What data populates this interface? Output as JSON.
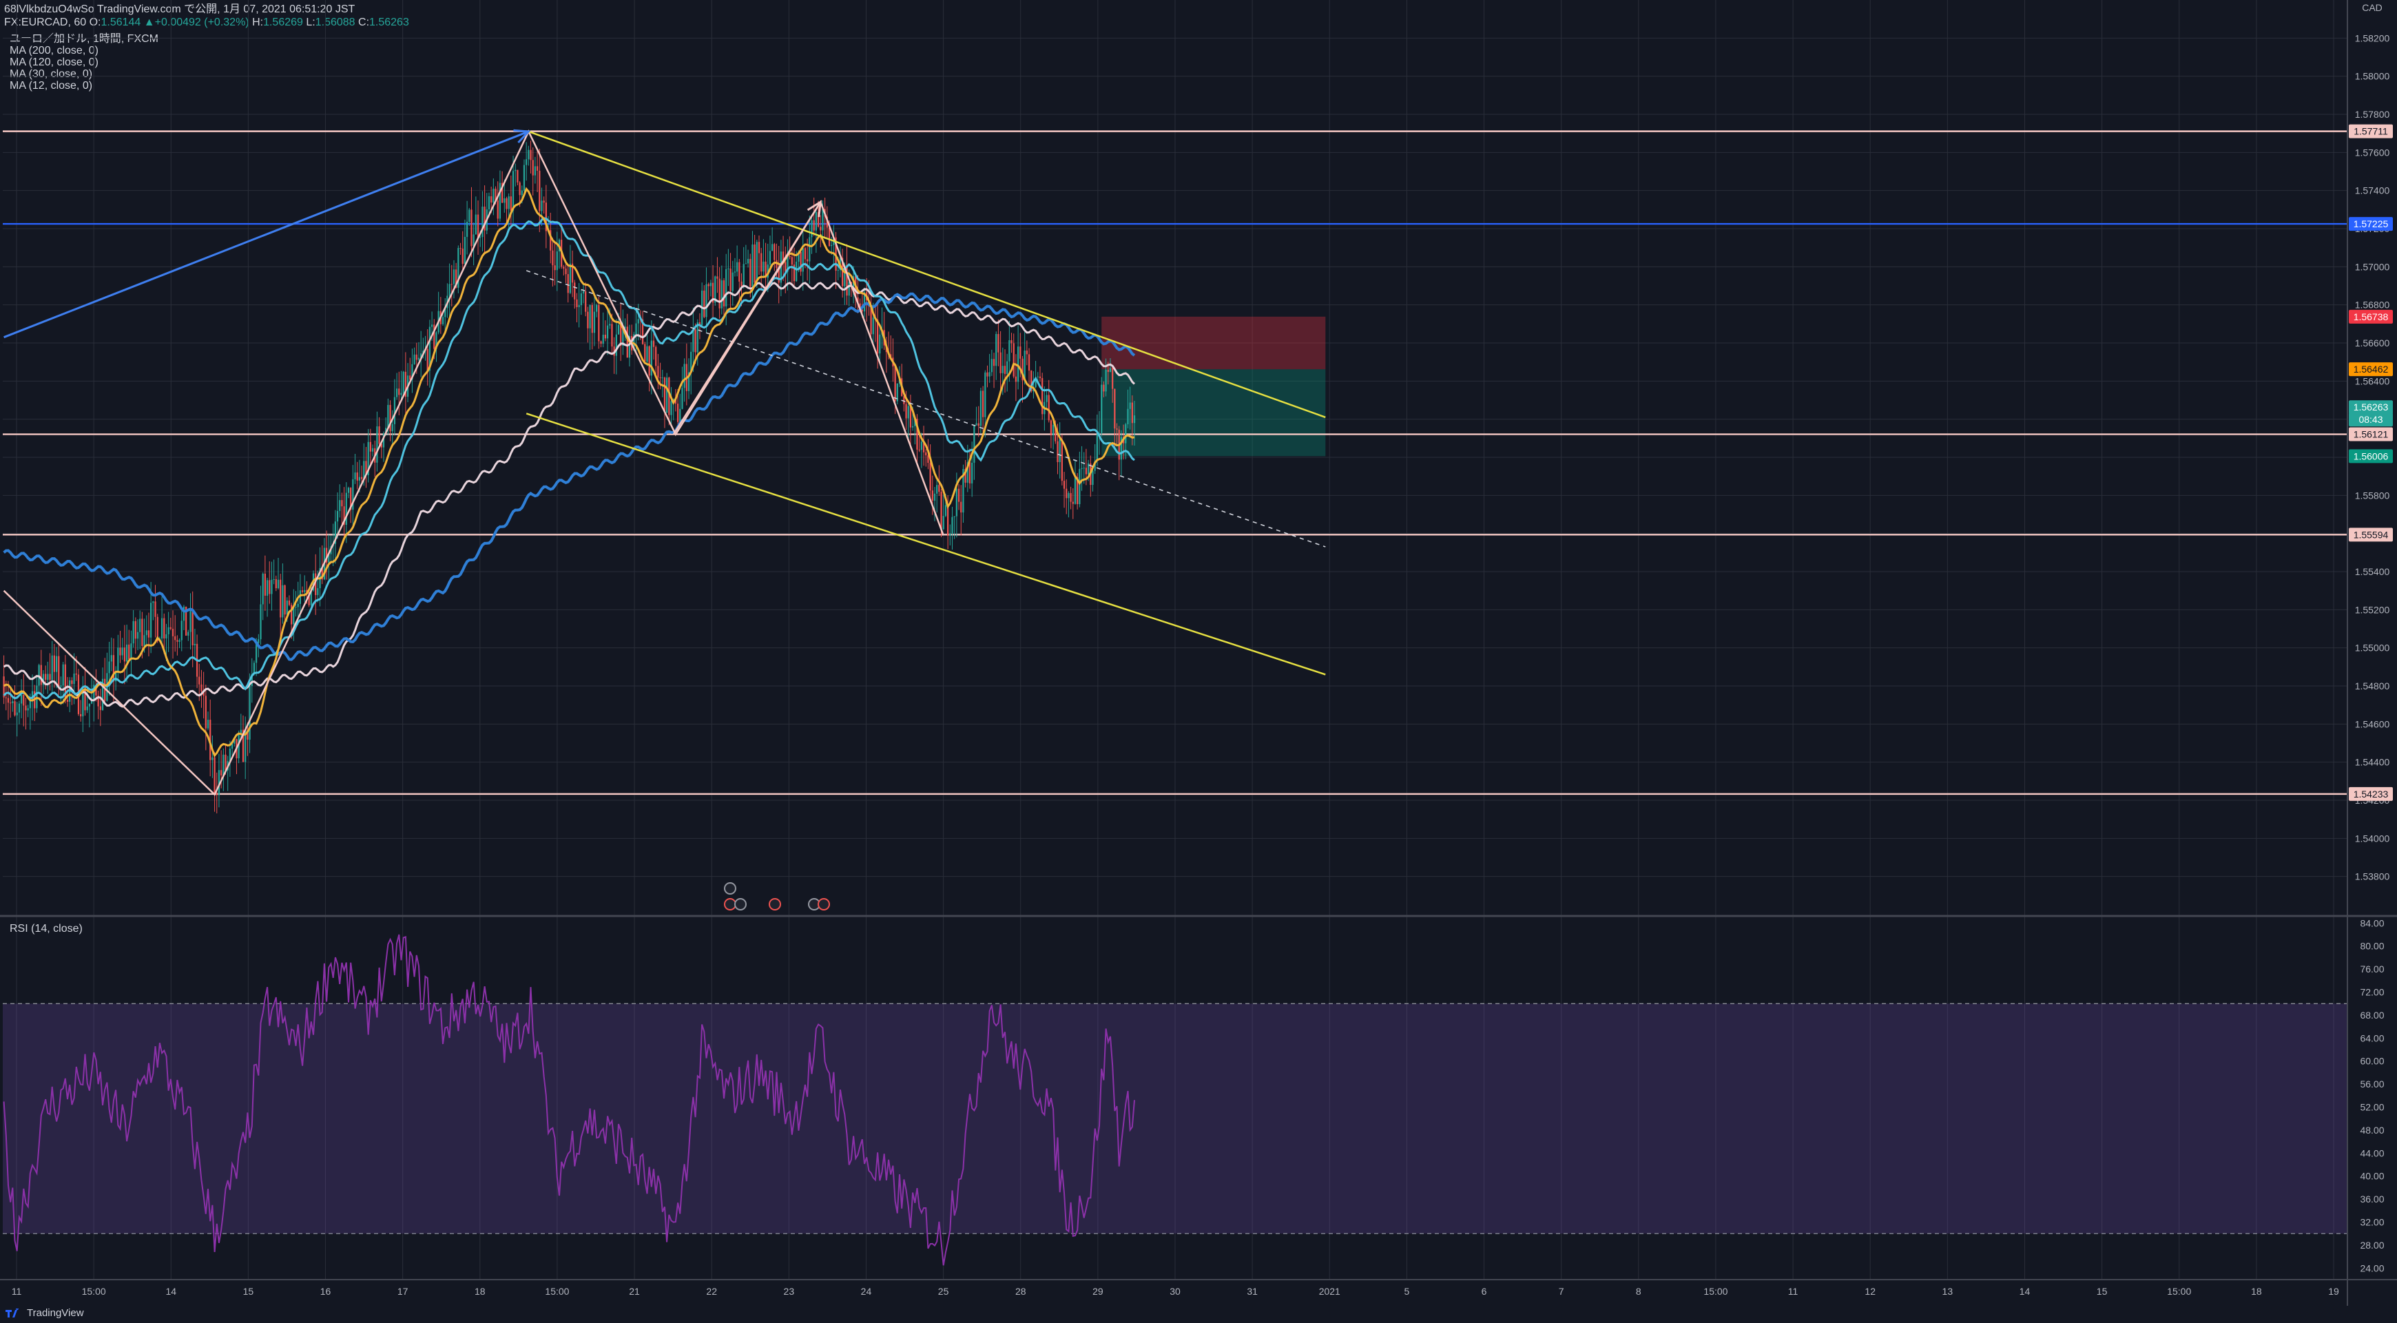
{
  "header": {
    "line1": "68lVlkbdzuO4wSo TradingView.com で公開, 1月 07, 2021 06:51:20 JST",
    "symbol": "FX:EURCAD, 60",
    "open_label": "O:",
    "open": "1.56144",
    "change": "+0.00492 (+0.32%)",
    "high_label": "H:",
    "high": "1.56269",
    "low_label": "L:",
    "low": "1.56088",
    "close_label": "C:",
    "close": "1.56263"
  },
  "legend": {
    "title": "ユーロ／加ドル, 1時間, FXCM",
    "ma200": "MA (200, close, 0)",
    "ma120": "MA (120, close, 0)",
    "ma30": "MA (30, close, 0)",
    "ma12": "MA (12, close, 0)"
  },
  "rsi_label": "RSI (14, close)",
  "brand": "TradingView",
  "colors": {
    "background": "#131722",
    "grid": "#2a2e39",
    "bull": "#26a69a",
    "bear": "#ef5350",
    "ma200": "#e8d4dc",
    "ma120": "#2f7fd6",
    "ma30": "#4fc3e0",
    "ma12": "#f0b33a",
    "rsi": "#8b31a8"
  },
  "chart_data": [
    {
      "type": "candlestick",
      "price_axis_unit": "CAD",
      "ylim": [
        1.536,
        1.584
      ],
      "y_ticks": [
        "1.53800",
        "1.54000",
        "1.54200",
        "1.54400",
        "1.54600",
        "1.54800",
        "1.55000",
        "1.55200",
        "1.55400",
        "1.55600",
        "1.55800",
        "1.56000",
        "1.56200",
        "1.56400",
        "1.56600",
        "1.56800",
        "1.57000",
        "1.57200",
        "1.57400",
        "1.57600",
        "1.57800",
        "1.58000",
        "1.58200"
      ],
      "x_ticks": [
        "11",
        "15:00",
        "14",
        "15",
        "16",
        "17",
        "18",
        "15:00",
        "21",
        "22",
        "23",
        "24",
        "25",
        "28",
        "29",
        "30",
        "31",
        "2021",
        "5",
        "6",
        "7",
        "8",
        "15:00",
        "11",
        "12",
        "13",
        "14",
        "15",
        "15:00",
        "18",
        "19"
      ],
      "price_badges": [
        {
          "value": "1.57711",
          "color": "#f4c7c3",
          "text_color": "#131722"
        },
        {
          "value": "1.57225",
          "color": "#2962ff",
          "text_color": "#ffffff"
        },
        {
          "value": "1.56738",
          "color": "#f23645",
          "text_color": "#ffffff"
        },
        {
          "value": "1.56462",
          "color": "#ff9800",
          "text_color": "#131722"
        },
        {
          "value": "1.56263",
          "color": "#26a69a",
          "text_color": "#ffffff"
        },
        {
          "value": "08:43",
          "color": "#26a69a",
          "text_color": "#ffffff"
        },
        {
          "value": "1.56121",
          "color": "#f4c7c3",
          "text_color": "#131722"
        },
        {
          "value": "1.56006",
          "color": "#089981",
          "text_color": "#ffffff"
        },
        {
          "value": "1.55594",
          "color": "#f4c7c3",
          "text_color": "#131722"
        },
        {
          "value": "1.54233",
          "color": "#f4c7c3",
          "text_color": "#131722"
        }
      ],
      "horizontal_levels": [
        {
          "value": 1.57711,
          "color": "#f4c7c3"
        },
        {
          "value": 1.57225,
          "color": "#2962ff"
        },
        {
          "value": 1.56121,
          "color": "#f4c7c3"
        },
        {
          "value": 1.55594,
          "color": "#f4c7c3"
        },
        {
          "value": 1.54233,
          "color": "#f4c7c3"
        }
      ],
      "position_box": {
        "entry": 1.56462,
        "stop": 1.56738,
        "target": 1.56006
      },
      "zigzag_pivots": [
        {
          "bar": 0,
          "price": 1.553
        },
        {
          "bar": 96,
          "price": 1.5423
        },
        {
          "bar": 239,
          "price": 1.5771
        },
        {
          "bar": 306,
          "price": 1.5612
        },
        {
          "bar": 372,
          "price": 1.5734
        },
        {
          "bar": 428,
          "price": 1.5559
        }
      ],
      "channel_upper": [
        {
          "bar": 239,
          "price": 1.5771
        },
        {
          "bar": 602,
          "price": 1.5621
        }
      ],
      "channel_lower": [
        {
          "bar": 238,
          "price": 1.5623
        },
        {
          "bar": 602,
          "price": 1.5486
        }
      ],
      "channel_mid": [
        {
          "bar": 238,
          "price": 1.5698
        },
        {
          "bar": 602,
          "price": 1.5553
        }
      ],
      "arrow_blue": [
        {
          "bar": 0,
          "price": 1.5663
        },
        {
          "bar": 239,
          "price": 1.5771
        }
      ],
      "arrow_white_top": [
        {
          "bar": 305,
          "price": 1.5612
        },
        {
          "bar": 372,
          "price": 1.5734
        }
      ],
      "close_anchors": [
        {
          "bar": 0,
          "price": 1.5485
        },
        {
          "bar": 5,
          "price": 1.546
        },
        {
          "bar": 20,
          "price": 1.549
        },
        {
          "bar": 40,
          "price": 1.547
        },
        {
          "bar": 65,
          "price": 1.5515
        },
        {
          "bar": 85,
          "price": 1.551
        },
        {
          "bar": 96,
          "price": 1.543
        },
        {
          "bar": 110,
          "price": 1.545
        },
        {
          "bar": 118,
          "price": 1.553
        },
        {
          "bar": 135,
          "price": 1.552
        },
        {
          "bar": 150,
          "price": 1.556
        },
        {
          "bar": 175,
          "price": 1.562
        },
        {
          "bar": 195,
          "price": 1.566
        },
        {
          "bar": 212,
          "price": 1.572
        },
        {
          "bar": 228,
          "price": 1.5735
        },
        {
          "bar": 240,
          "price": 1.5755
        },
        {
          "bar": 248,
          "price": 1.5715
        },
        {
          "bar": 258,
          "price": 1.5695
        },
        {
          "bar": 275,
          "price": 1.566
        },
        {
          "bar": 290,
          "price": 1.5665
        },
        {
          "bar": 306,
          "price": 1.562
        },
        {
          "bar": 318,
          "price": 1.568
        },
        {
          "bar": 330,
          "price": 1.569
        },
        {
          "bar": 345,
          "price": 1.5705
        },
        {
          "bar": 360,
          "price": 1.57
        },
        {
          "bar": 372,
          "price": 1.5725
        },
        {
          "bar": 385,
          "price": 1.569
        },
        {
          "bar": 400,
          "price": 1.566
        },
        {
          "bar": 415,
          "price": 1.561
        },
        {
          "bar": 428,
          "price": 1.5565
        },
        {
          "bar": 438,
          "price": 1.5585
        },
        {
          "bar": 450,
          "price": 1.5655
        },
        {
          "bar": 462,
          "price": 1.565
        },
        {
          "bar": 475,
          "price": 1.563
        },
        {
          "bar": 485,
          "price": 1.558
        },
        {
          "bar": 495,
          "price": 1.559
        },
        {
          "bar": 503,
          "price": 1.565
        },
        {
          "bar": 508,
          "price": 1.56
        },
        {
          "bar": 515,
          "price": 1.5626
        }
      ],
      "ma200_anchors": [
        {
          "bar": 0,
          "price": 1.549
        },
        {
          "bar": 50,
          "price": 1.547
        },
        {
          "bar": 110,
          "price": 1.548
        },
        {
          "bar": 150,
          "price": 1.549
        },
        {
          "bar": 190,
          "price": 1.557
        },
        {
          "bar": 230,
          "price": 1.56
        },
        {
          "bar": 260,
          "price": 1.5645
        },
        {
          "bar": 300,
          "price": 1.567
        },
        {
          "bar": 340,
          "price": 1.569
        },
        {
          "bar": 380,
          "price": 1.569
        },
        {
          "bar": 420,
          "price": 1.568
        },
        {
          "bar": 460,
          "price": 1.567
        },
        {
          "bar": 500,
          "price": 1.565
        },
        {
          "bar": 515,
          "price": 1.564
        }
      ],
      "ma120_anchors": [
        {
          "bar": 0,
          "price": 1.555
        },
        {
          "bar": 50,
          "price": 1.554
        },
        {
          "bar": 100,
          "price": 1.551
        },
        {
          "bar": 130,
          "price": 1.5495
        },
        {
          "bar": 160,
          "price": 1.5505
        },
        {
          "bar": 200,
          "price": 1.553
        },
        {
          "bar": 240,
          "price": 1.558
        },
        {
          "bar": 300,
          "price": 1.561
        },
        {
          "bar": 340,
          "price": 1.5645
        },
        {
          "bar": 380,
          "price": 1.5675
        },
        {
          "bar": 410,
          "price": 1.5685
        },
        {
          "bar": 440,
          "price": 1.568
        },
        {
          "bar": 480,
          "price": 1.567
        },
        {
          "bar": 515,
          "price": 1.5655
        }
      ],
      "ma30_anchors": [
        {
          "bar": 0,
          "price": 1.5475
        },
        {
          "bar": 25,
          "price": 1.5475
        },
        {
          "bar": 60,
          "price": 1.5485
        },
        {
          "bar": 90,
          "price": 1.5495
        },
        {
          "bar": 110,
          "price": 1.548
        },
        {
          "bar": 140,
          "price": 1.552
        },
        {
          "bar": 170,
          "price": 1.557
        },
        {
          "bar": 200,
          "price": 1.565
        },
        {
          "bar": 230,
          "price": 1.572
        },
        {
          "bar": 250,
          "price": 1.5725
        },
        {
          "bar": 270,
          "price": 1.57
        },
        {
          "bar": 300,
          "price": 1.566
        },
        {
          "bar": 330,
          "price": 1.5675
        },
        {
          "bar": 360,
          "price": 1.57
        },
        {
          "bar": 385,
          "price": 1.57
        },
        {
          "bar": 410,
          "price": 1.567
        },
        {
          "bar": 430,
          "price": 1.561
        },
        {
          "bar": 445,
          "price": 1.56
        },
        {
          "bar": 470,
          "price": 1.564
        },
        {
          "bar": 490,
          "price": 1.562
        },
        {
          "bar": 505,
          "price": 1.5605
        },
        {
          "bar": 515,
          "price": 1.56
        }
      ],
      "ma12_anchors": [
        {
          "bar": 0,
          "price": 1.548
        },
        {
          "bar": 20,
          "price": 1.547
        },
        {
          "bar": 45,
          "price": 1.548
        },
        {
          "bar": 70,
          "price": 1.5505
        },
        {
          "bar": 96,
          "price": 1.5445
        },
        {
          "bar": 115,
          "price": 1.546
        },
        {
          "bar": 130,
          "price": 1.552
        },
        {
          "bar": 150,
          "price": 1.5545
        },
        {
          "bar": 175,
          "price": 1.56
        },
        {
          "bar": 210,
          "price": 1.569
        },
        {
          "bar": 238,
          "price": 1.574
        },
        {
          "bar": 255,
          "price": 1.5705
        },
        {
          "bar": 280,
          "price": 1.567
        },
        {
          "bar": 305,
          "price": 1.563
        },
        {
          "bar": 325,
          "price": 1.567
        },
        {
          "bar": 350,
          "price": 1.57
        },
        {
          "bar": 372,
          "price": 1.5715
        },
        {
          "bar": 395,
          "price": 1.568
        },
        {
          "bar": 415,
          "price": 1.562
        },
        {
          "bar": 430,
          "price": 1.5575
        },
        {
          "bar": 445,
          "price": 1.561
        },
        {
          "bar": 460,
          "price": 1.565
        },
        {
          "bar": 478,
          "price": 1.562
        },
        {
          "bar": 490,
          "price": 1.5585
        },
        {
          "bar": 503,
          "price": 1.5605
        },
        {
          "bar": 515,
          "price": 1.5612
        }
      ]
    },
    {
      "type": "line",
      "name": "RSI (14, close)",
      "ylim": [
        22,
        85
      ],
      "y_ticks": [
        "24.00",
        "28.00",
        "32.00",
        "36.00",
        "40.00",
        "44.00",
        "48.00",
        "52.00",
        "56.00",
        "60.00",
        "64.00",
        "68.00",
        "72.00",
        "76.00",
        "80.00",
        "84.00"
      ],
      "band": [
        30,
        70
      ],
      "anchors": [
        {
          "bar": 0,
          "price": 50
        },
        {
          "bar": 5,
          "price": 30
        },
        {
          "bar": 20,
          "price": 52
        },
        {
          "bar": 40,
          "price": 58
        },
        {
          "bar": 55,
          "price": 48
        },
        {
          "bar": 70,
          "price": 62
        },
        {
          "bar": 85,
          "price": 48
        },
        {
          "bar": 96,
          "price": 30
        },
        {
          "bar": 110,
          "price": 45
        },
        {
          "bar": 120,
          "price": 70
        },
        {
          "bar": 135,
          "price": 62
        },
        {
          "bar": 150,
          "price": 78
        },
        {
          "bar": 165,
          "price": 68
        },
        {
          "bar": 180,
          "price": 80
        },
        {
          "bar": 200,
          "price": 66
        },
        {
          "bar": 215,
          "price": 72
        },
        {
          "bar": 230,
          "price": 62
        },
        {
          "bar": 240,
          "price": 70
        },
        {
          "bar": 252,
          "price": 40
        },
        {
          "bar": 265,
          "price": 50
        },
        {
          "bar": 280,
          "price": 46
        },
        {
          "bar": 295,
          "price": 38
        },
        {
          "bar": 306,
          "price": 30
        },
        {
          "bar": 318,
          "price": 62
        },
        {
          "bar": 330,
          "price": 54
        },
        {
          "bar": 345,
          "price": 58
        },
        {
          "bar": 360,
          "price": 50
        },
        {
          "bar": 372,
          "price": 64
        },
        {
          "bar": 385,
          "price": 46
        },
        {
          "bar": 400,
          "price": 40
        },
        {
          "bar": 415,
          "price": 34
        },
        {
          "bar": 428,
          "price": 28
        },
        {
          "bar": 440,
          "price": 50
        },
        {
          "bar": 450,
          "price": 70
        },
        {
          "bar": 460,
          "price": 60
        },
        {
          "bar": 475,
          "price": 54
        },
        {
          "bar": 485,
          "price": 32
        },
        {
          "bar": 495,
          "price": 38
        },
        {
          "bar": 503,
          "price": 66
        },
        {
          "bar": 508,
          "price": 46
        },
        {
          "bar": 515,
          "price": 54
        }
      ]
    }
  ]
}
